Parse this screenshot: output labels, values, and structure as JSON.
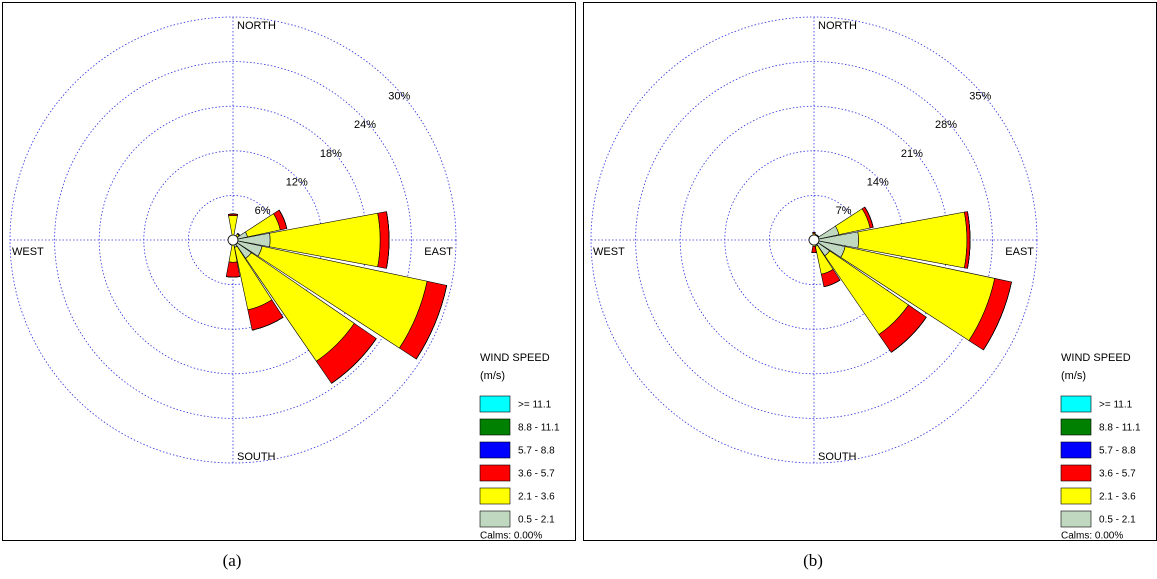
{
  "chart_data": [
    {
      "type": "wind-rose",
      "caption": "(a)",
      "categories": [
        "NORTH",
        null,
        null,
        null,
        "EAST",
        null,
        null,
        null,
        "SOUTH",
        null,
        null,
        null,
        "WEST",
        null,
        null,
        null
      ],
      "series": [
        {
          "name": ">= 11.1",
          "color": "#00ffff",
          "values": [
            0,
            0,
            0,
            0,
            0,
            0,
            0,
            0,
            0,
            0,
            0,
            0,
            0,
            0,
            0,
            0
          ]
        },
        {
          "name": "8.8 - 11.1",
          "color": "#008000",
          "values": [
            0,
            0,
            0,
            0,
            0,
            0,
            0,
            0,
            0,
            0,
            0,
            0,
            0,
            0,
            0,
            0
          ]
        },
        {
          "name": "5.7 - 8.8",
          "color": "#0000ff",
          "values": [
            0,
            0,
            0,
            0,
            0,
            0,
            0,
            0,
            0,
            0,
            0,
            0,
            0,
            0,
            0,
            0
          ]
        },
        {
          "name": "3.6 - 5.7",
          "color": "#ff0000",
          "values": [
            0.2,
            0,
            0.1,
            0.9,
            1.2,
            2.7,
            3.6,
            2.8,
            2.0,
            0.2,
            0,
            0,
            0,
            0,
            0,
            0
          ]
        },
        {
          "name": "2.1 - 3.6",
          "color": "#ffff00",
          "values": [
            3.0,
            0.3,
            0.5,
            4.5,
            14.8,
            22.7,
            16.8,
            8.6,
            2.5,
            0.3,
            0.1,
            0.1,
            0.1,
            0.1,
            0.1,
            0.2
          ]
        },
        {
          "name": "0.5 - 2.1",
          "color": "#c0d8c0",
          "values": [
            0.3,
            0.3,
            0.5,
            2.0,
            5.0,
            4.0,
            3.0,
            1.0,
            0.5,
            0.2,
            0.1,
            0.1,
            0.1,
            0.1,
            0.1,
            0.2
          ]
        }
      ],
      "rlim": [
        0,
        30
      ],
      "rticks": [
        {
          "value": 6,
          "label": "6%"
        },
        {
          "value": 12,
          "label": "12%"
        },
        {
          "value": 18,
          "label": "18%"
        },
        {
          "value": 24,
          "label": "24%"
        },
        {
          "value": 30,
          "label": "30%"
        }
      ],
      "grid": true,
      "legend_title": "WIND SPEED",
      "legend_unit": "(m/s)",
      "calms": "Calms: 0.00%"
    },
    {
      "type": "wind-rose",
      "caption": "(b)",
      "categories": [
        "NORTH",
        null,
        null,
        null,
        "EAST",
        null,
        null,
        null,
        "SOUTH",
        null,
        null,
        null,
        "WEST",
        null,
        null,
        null
      ],
      "series": [
        {
          "name": ">= 11.1",
          "color": "#00ffff",
          "values": [
            0,
            0,
            0,
            0,
            0,
            0,
            0,
            0,
            0,
            0,
            0,
            0,
            0,
            0,
            0,
            0
          ]
        },
        {
          "name": "8.8 - 11.1",
          "color": "#008000",
          "values": [
            0,
            0,
            0,
            0,
            0,
            0,
            0,
            0,
            0,
            0,
            0,
            0,
            0,
            0,
            0,
            0
          ]
        },
        {
          "name": "5.7 - 8.8",
          "color": "#0000ff",
          "values": [
            0,
            0,
            0,
            0,
            0,
            0,
            0,
            0,
            0,
            0,
            0,
            0,
            0,
            0,
            0,
            0
          ]
        },
        {
          "name": "3.6 - 5.7",
          "color": "#ff0000",
          "values": [
            0.2,
            0.1,
            0.1,
            0.5,
            0.5,
            2.7,
            3.4,
            2.0,
            1.0,
            0.1,
            0,
            0,
            0,
            0,
            0,
            0
          ]
        },
        {
          "name": "2.1 - 3.6",
          "color": "#ffff00",
          "values": [
            0.7,
            0.5,
            0.3,
            5.0,
            17.0,
            24.0,
            15.0,
            4.5,
            0.5,
            0.3,
            0.1,
            0.1,
            0.1,
            0.1,
            0.1,
            0.2
          ]
        },
        {
          "name": "0.5 - 2.1",
          "color": "#c0d8c0",
          "values": [
            0.3,
            0.3,
            0.5,
            4.0,
            7.0,
            5.0,
            3.0,
            1.0,
            0.5,
            0.2,
            0.1,
            0.1,
            0.1,
            0.1,
            0.1,
            0.2
          ]
        }
      ],
      "rlim": [
        0,
        35
      ],
      "rticks": [
        {
          "value": 7,
          "label": "7%"
        },
        {
          "value": 14,
          "label": "14%"
        },
        {
          "value": 21,
          "label": "21%"
        },
        {
          "value": 28,
          "label": "28%"
        },
        {
          "value": 35,
          "label": "35%"
        }
      ],
      "grid": true,
      "legend_title": "WIND SPEED",
      "legend_unit": "(m/s)",
      "calms": "Calms: 0.00%"
    }
  ]
}
